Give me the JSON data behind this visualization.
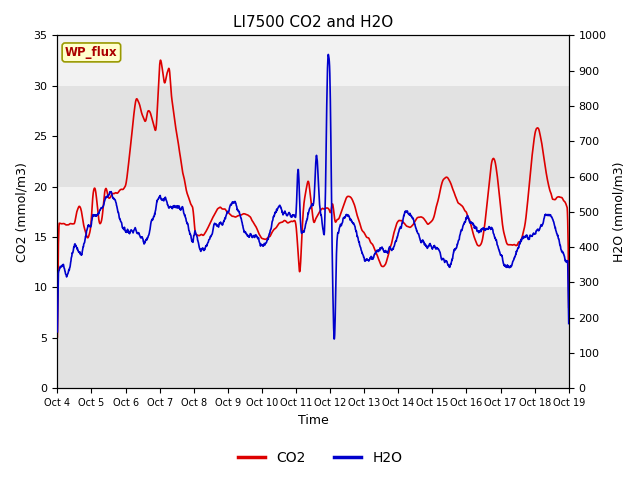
{
  "title": "LI7500 CO2 and H2O",
  "xlabel": "Time",
  "ylabel_left": "CO2 (mmol/m3)",
  "ylabel_right": "H2O (mmol/m3)",
  "ylim_left": [
    0,
    35
  ],
  "ylim_right": [
    0,
    1000
  ],
  "yticks_left": [
    0,
    5,
    10,
    15,
    20,
    25,
    30,
    35
  ],
  "yticks_right": [
    0,
    100,
    200,
    300,
    400,
    500,
    600,
    700,
    800,
    900,
    1000
  ],
  "xtick_labels": [
    "Oct 4",
    "Oct 5",
    "Oct 6",
    "Oct 7",
    "Oct 8",
    "Oct 9",
    "Oct 10",
    "Oct 11",
    "Oct 12",
    "Oct 13",
    "Oct 14",
    "Oct 15",
    "Oct 16",
    "Oct 17",
    "Oct 18",
    "Oct 19"
  ],
  "co2_color": "#DD0000",
  "h2o_color": "#0000CC",
  "background_color": "#ffffff",
  "plot_bg_light": "#f2f2f2",
  "plot_bg_dark": "#e2e2e2",
  "wp_flux_label": "WP_flux",
  "wp_flux_bg": "#ffffcc",
  "wp_flux_border": "#999900",
  "legend_co2": "CO2",
  "legend_h2o": "H2O",
  "title_fontsize": 11,
  "label_fontsize": 9,
  "tick_fontsize": 8,
  "linewidth": 1.2
}
